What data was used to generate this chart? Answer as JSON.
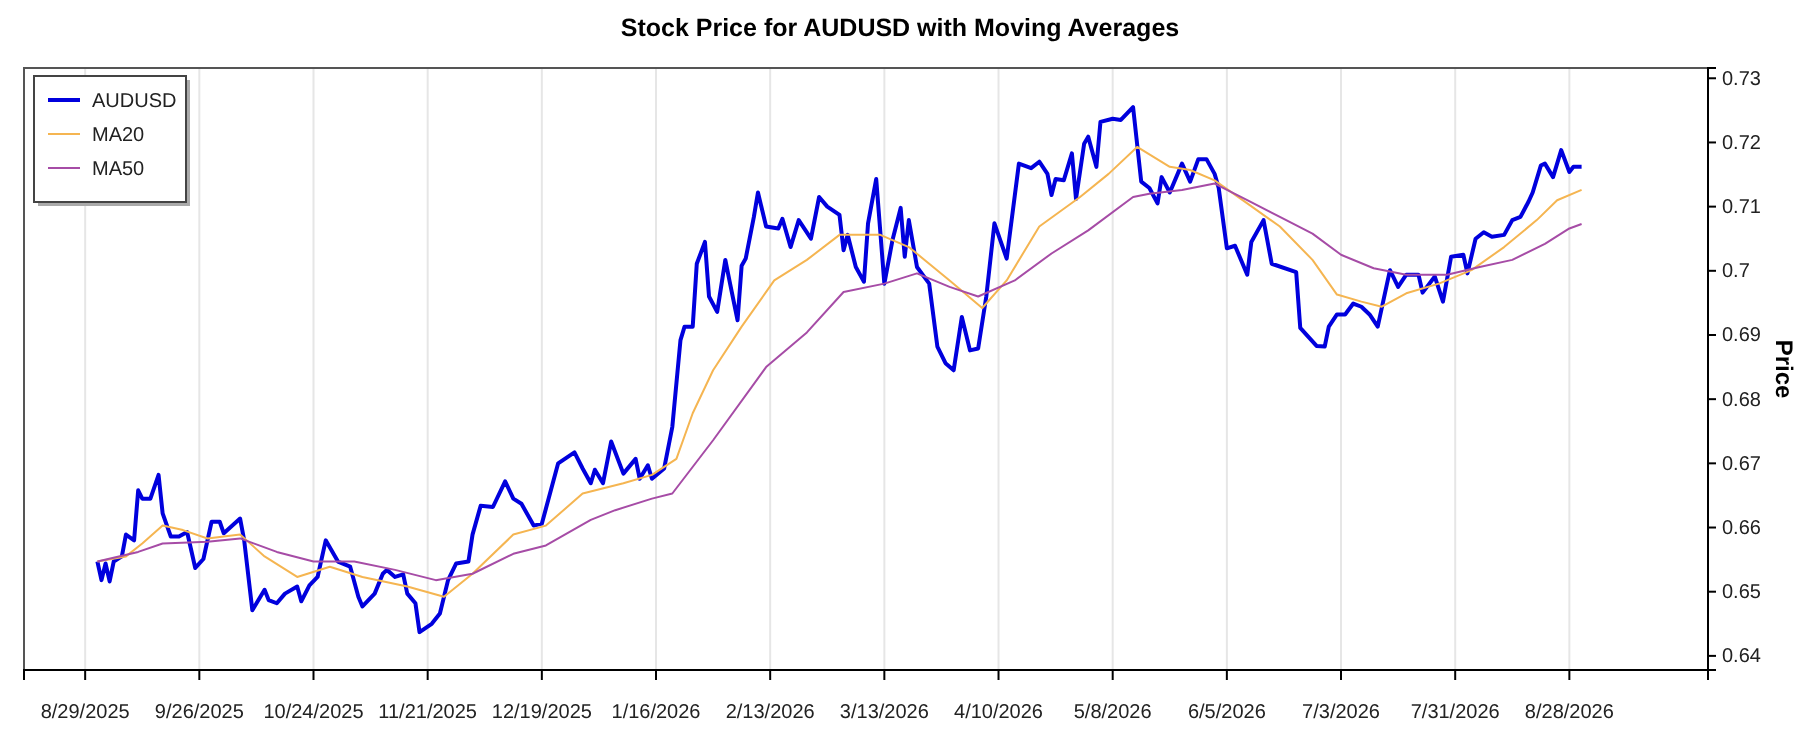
{
  "chart_data": {
    "type": "line",
    "title": "Stock Price for AUDUSD with Moving Averages",
    "ylabel": "Price",
    "xlim": [
      "2025-08-14",
      "2026-10-01"
    ],
    "ylim": [
      0.6378,
      0.7316
    ],
    "xticks": [
      {
        "value": "2025-08-29",
        "label": "8/29/2025"
      },
      {
        "value": "2025-09-26",
        "label": "9/26/2025"
      },
      {
        "value": "2025-10-24",
        "label": "10/24/2025"
      },
      {
        "value": "2025-11-21",
        "label": "11/21/2025"
      },
      {
        "value": "2025-12-19",
        "label": "12/19/2025"
      },
      {
        "value": "2026-01-16",
        "label": "1/16/2026"
      },
      {
        "value": "2026-02-13",
        "label": "2/13/2026"
      },
      {
        "value": "2026-03-13",
        "label": "3/13/2026"
      },
      {
        "value": "2026-04-10",
        "label": "4/10/2026"
      },
      {
        "value": "2026-05-08",
        "label": "5/8/2026"
      },
      {
        "value": "2026-06-05",
        "label": "6/5/2026"
      },
      {
        "value": "2026-07-03",
        "label": "7/3/2026"
      },
      {
        "value": "2026-07-31",
        "label": "7/31/2026"
      },
      {
        "value": "2026-08-28",
        "label": "8/28/2026"
      }
    ],
    "yticks": [
      0.64,
      0.65,
      0.66,
      0.67,
      0.68,
      0.69,
      0.7,
      0.71,
      0.72,
      0.73
    ],
    "grid": "x",
    "legend": "top left",
    "marker": "none",
    "line_style": "solid",
    "series": [
      {
        "name": "AUDUSD",
        "color": "#0000dd",
        "x": [
          "2025-09-01",
          "2025-09-02",
          "2025-09-03",
          "2025-09-04",
          "2025-09-05",
          "2025-09-07",
          "2025-09-08",
          "2025-09-10",
          "2025-09-11",
          "2025-09-12",
          "2025-09-14",
          "2025-09-16",
          "2025-09-17",
          "2025-09-19",
          "2025-09-21",
          "2025-09-23",
          "2025-09-25",
          "2025-09-27",
          "2025-09-29",
          "2025-10-01",
          "2025-10-02",
          "2025-10-06",
          "2025-10-07",
          "2025-10-09",
          "2025-10-12",
          "2025-10-13",
          "2025-10-15",
          "2025-10-17",
          "2025-10-20",
          "2025-10-21",
          "2025-10-23",
          "2025-10-25",
          "2025-10-27",
          "2025-10-30",
          "2025-11-02",
          "2025-11-04",
          "2025-11-05",
          "2025-11-08",
          "2025-11-10",
          "2025-11-11",
          "2025-11-13",
          "2025-11-15",
          "2025-11-16",
          "2025-11-18",
          "2025-11-19",
          "2025-11-22",
          "2025-11-24",
          "2025-11-26",
          "2025-11-28",
          "2025-12-01",
          "2025-12-02",
          "2025-12-04",
          "2025-12-07",
          "2025-12-10",
          "2025-12-12",
          "2025-12-14",
          "2025-12-17",
          "2025-12-19",
          "2025-12-23",
          "2025-12-27",
          "2025-12-29",
          "2025-12-31",
          "2026-01-01",
          "2026-01-03",
          "2026-01-05",
          "2026-01-08",
          "2026-01-11",
          "2026-01-12",
          "2026-01-14",
          "2026-01-15",
          "2026-01-18",
          "2026-01-20",
          "2026-01-22",
          "2026-01-23",
          "2026-01-25",
          "2026-01-26",
          "2026-01-28",
          "2026-01-29",
          "2026-01-31",
          "2026-02-02",
          "2026-02-03",
          "2026-02-05",
          "2026-02-06",
          "2026-02-07",
          "2026-02-09",
          "2026-02-10",
          "2026-02-12",
          "2026-02-15",
          "2026-02-16",
          "2026-02-18",
          "2026-02-20",
          "2026-02-23",
          "2026-02-25",
          "2026-02-27",
          "2026-03-02",
          "2026-03-03",
          "2026-03-04",
          "2026-03-06",
          "2026-03-08",
          "2026-03-09",
          "2026-03-11",
          "2026-03-13",
          "2026-03-15",
          "2026-03-17",
          "2026-03-18",
          "2026-03-19",
          "2026-03-21",
          "2026-03-24",
          "2026-03-26",
          "2026-03-28",
          "2026-03-30",
          "2026-04-01",
          "2026-04-03",
          "2026-04-05",
          "2026-04-07",
          "2026-04-09",
          "2026-04-12",
          "2026-04-15",
          "2026-04-18",
          "2026-04-20",
          "2026-04-22",
          "2026-04-23",
          "2026-04-24",
          "2026-04-26",
          "2026-04-28",
          "2026-04-29",
          "2026-05-01",
          "2026-05-02",
          "2026-05-04",
          "2026-05-05",
          "2026-05-08",
          "2026-05-10",
          "2026-05-13",
          "2026-05-15",
          "2026-05-17",
          "2026-05-19",
          "2026-05-20",
          "2026-05-22",
          "2026-05-25",
          "2026-05-27",
          "2026-05-29",
          "2026-05-31",
          "2026-06-02",
          "2026-06-03",
          "2026-06-05",
          "2026-06-07",
          "2026-06-10",
          "2026-06-11",
          "2026-06-14",
          "2026-06-16",
          "2026-06-22",
          "2026-06-23",
          "2026-06-25",
          "2026-06-27",
          "2026-06-29",
          "2026-06-30",
          "2026-07-02",
          "2026-07-04",
          "2026-07-06",
          "2026-07-08",
          "2026-07-10",
          "2026-07-12",
          "2026-07-15",
          "2026-07-17",
          "2026-07-19",
          "2026-07-22",
          "2026-07-23",
          "2026-07-26",
          "2026-07-28",
          "2026-07-30",
          "2026-08-02",
          "2026-08-03",
          "2026-08-05",
          "2026-08-07",
          "2026-08-09",
          "2026-08-12",
          "2026-08-14",
          "2026-08-16",
          "2026-08-18",
          "2026-08-19",
          "2026-08-21",
          "2026-08-22",
          "2026-08-24",
          "2026-08-26",
          "2026-08-28",
          "2026-08-29",
          "2026-08-31"
        ],
        "values": [
          0.6547,
          0.6518,
          0.6544,
          0.6516,
          0.6547,
          0.6555,
          0.6589,
          0.658,
          0.6658,
          0.6645,
          0.6645,
          0.6682,
          0.6622,
          0.6586,
          0.6586,
          0.6593,
          0.6537,
          0.6551,
          0.6609,
          0.6609,
          0.6591,
          0.6614,
          0.658,
          0.6471,
          0.6503,
          0.6487,
          0.6482,
          0.6497,
          0.6508,
          0.6485,
          0.651,
          0.6523,
          0.658,
          0.6547,
          0.6539,
          0.6492,
          0.6477,
          0.6497,
          0.6528,
          0.6534,
          0.6523,
          0.6527,
          0.6497,
          0.6482,
          0.6437,
          0.645,
          0.6466,
          0.6518,
          0.6544,
          0.6547,
          0.6589,
          0.6634,
          0.6632,
          0.6672,
          0.6645,
          0.6637,
          0.6603,
          0.6606,
          0.67,
          0.6717,
          0.6692,
          0.6669,
          0.669,
          0.6669,
          0.6734,
          0.6684,
          0.6707,
          0.6676,
          0.6697,
          0.6676,
          0.6692,
          0.6757,
          0.6892,
          0.6913,
          0.6913,
          0.7011,
          0.7045,
          0.696,
          0.6936,
          0.7017,
          0.6985,
          0.6923,
          0.7008,
          0.7019,
          0.7084,
          0.7122,
          0.7069,
          0.7066,
          0.7081,
          0.7037,
          0.7079,
          0.705,
          0.7115,
          0.71,
          0.7087,
          0.7032,
          0.7056,
          0.7006,
          0.6983,
          0.7074,
          0.7143,
          0.698,
          0.7048,
          0.7098,
          0.7022,
          0.7079,
          0.7006,
          0.698,
          0.6882,
          0.6856,
          0.6845,
          0.6928,
          0.6876,
          0.6879,
          0.696,
          0.7074,
          0.7019,
          0.7167,
          0.716,
          0.717,
          0.7151,
          0.7118,
          0.7143,
          0.7141,
          0.7183,
          0.7112,
          0.7198,
          0.7209,
          0.7162,
          0.7232,
          0.7237,
          0.7235,
          0.7255,
          0.7139,
          0.7129,
          0.7105,
          0.7146,
          0.7122,
          0.7167,
          0.7139,
          0.7174,
          0.7174,
          0.7151,
          0.7129,
          0.7035,
          0.7039,
          0.6994,
          0.7045,
          0.7079,
          0.7011,
          0.6998,
          0.6911,
          0.6897,
          0.6883,
          0.6882,
          0.6913,
          0.6932,
          0.6932,
          0.6949,
          0.6944,
          0.6932,
          0.6913,
          0.7001,
          0.6975,
          0.6994,
          0.6994,
          0.6966,
          0.6991,
          0.6952,
          0.7022,
          0.7025,
          0.6996,
          0.705,
          0.706,
          0.7053,
          0.7056,
          0.7079,
          0.7084,
          0.7108,
          0.7122,
          0.7164,
          0.7167,
          0.7146,
          0.7188,
          0.7154,
          0.7162,
          0.7162
        ]
      },
      {
        "name": "MA20",
        "color": "#f5b551",
        "x": [
          "2025-09-01",
          "2025-09-08",
          "2025-09-12",
          "2025-09-17",
          "2025-09-22",
          "2025-09-28",
          "2025-10-06",
          "2025-10-12",
          "2025-10-20",
          "2025-10-28",
          "2025-11-05",
          "2025-11-16",
          "2025-11-25",
          "2025-12-02",
          "2025-12-12",
          "2025-12-20",
          "2025-12-29",
          "2026-01-08",
          "2026-01-15",
          "2026-01-21",
          "2026-01-25",
          "2026-01-30",
          "2026-02-06",
          "2026-02-14",
          "2026-02-22",
          "2026-03-02",
          "2026-03-12",
          "2026-03-19",
          "2026-03-29",
          "2026-04-06",
          "2026-04-12",
          "2026-04-20",
          "2026-04-30",
          "2026-05-07",
          "2026-05-14",
          "2026-05-22",
          "2026-05-27",
          "2026-06-02",
          "2026-06-10",
          "2026-06-18",
          "2026-06-26",
          "2026-07-02",
          "2026-07-08",
          "2026-07-13",
          "2026-07-19",
          "2026-07-27",
          "2026-08-04",
          "2026-08-12",
          "2026-08-20",
          "2026-08-25",
          "2026-08-31"
        ],
        "values": [
          0.6547,
          0.6555,
          0.6575,
          0.6603,
          0.6596,
          0.6583,
          0.6589,
          0.6555,
          0.6523,
          0.6539,
          0.6523,
          0.6508,
          0.6492,
          0.6528,
          0.6589,
          0.6603,
          0.6653,
          0.6669,
          0.6682,
          0.6707,
          0.6778,
          0.6845,
          0.6913,
          0.6985,
          0.7017,
          0.7056,
          0.7056,
          0.7037,
          0.6985,
          0.6942,
          0.6985,
          0.7069,
          0.7115,
          0.7151,
          0.7193,
          0.7162,
          0.7157,
          0.7141,
          0.7105,
          0.7069,
          0.7017,
          0.6963,
          0.6952,
          0.6944,
          0.6965,
          0.698,
          0.7001,
          0.7037,
          0.7079,
          0.711,
          0.7126
        ]
      },
      {
        "name": "MA50",
        "color": "#a64ca6",
        "x": [
          "2025-09-01",
          "2025-09-11",
          "2025-09-17",
          "2025-09-28",
          "2025-10-06",
          "2025-10-15",
          "2025-10-24",
          "2025-11-03",
          "2025-11-13",
          "2025-11-23",
          "2025-12-02",
          "2025-12-12",
          "2025-12-20",
          "2025-12-31",
          "2026-01-06",
          "2026-01-15",
          "2026-01-20",
          "2026-01-30",
          "2026-02-12",
          "2026-02-22",
          "2026-03-03",
          "2026-03-13",
          "2026-03-21",
          "2026-03-29",
          "2026-04-05",
          "2026-04-14",
          "2026-04-23",
          "2026-05-02",
          "2026-05-13",
          "2026-05-17",
          "2026-05-25",
          "2026-06-02",
          "2026-06-10",
          "2026-06-18",
          "2026-06-26",
          "2026-07-03",
          "2026-07-11",
          "2026-07-19",
          "2026-07-29",
          "2026-08-06",
          "2026-08-14",
          "2026-08-22",
          "2026-08-28",
          "2026-08-31"
        ],
        "values": [
          0.6547,
          0.6562,
          0.6575,
          0.6578,
          0.6583,
          0.6562,
          0.6547,
          0.6547,
          0.6534,
          0.6518,
          0.6528,
          0.6559,
          0.6572,
          0.6612,
          0.6627,
          0.6645,
          0.6653,
          0.6736,
          0.685,
          0.6904,
          0.6967,
          0.698,
          0.6996,
          0.6975,
          0.696,
          0.6985,
          0.7027,
          0.7063,
          0.7115,
          0.712,
          0.7126,
          0.7136,
          0.711,
          0.7084,
          0.7058,
          0.7025,
          0.7004,
          0.6994,
          0.6994,
          0.7006,
          0.7017,
          0.7042,
          0.7066,
          0.7073
        ]
      }
    ]
  }
}
